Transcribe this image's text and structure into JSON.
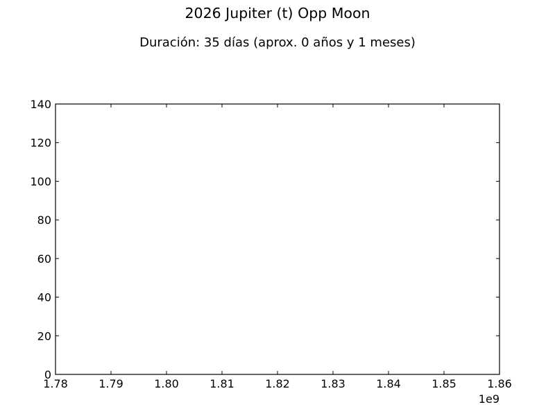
{
  "chart_data": {
    "type": "line",
    "title": "2026 Jupiter (t) Opp Moon",
    "subtitle": "Duración: 35 días (aprox. 0 años y 1 meses)",
    "xlabel": "",
    "ylabel": "",
    "x_offset_label": "1e9",
    "xlim": [
      1.78,
      1.86
    ],
    "ylim": [
      0,
      140
    ],
    "x_ticks": [
      1.78,
      1.79,
      1.8,
      1.81,
      1.82,
      1.83,
      1.84,
      1.85,
      1.86
    ],
    "x_tick_labels": [
      "1.78",
      "1.79",
      "1.80",
      "1.81",
      "1.82",
      "1.83",
      "1.84",
      "1.85",
      "1.86"
    ],
    "y_ticks": [
      0,
      20,
      40,
      60,
      80,
      100,
      120,
      140
    ],
    "y_tick_labels": [
      "0",
      "20",
      "40",
      "60",
      "80",
      "100",
      "120",
      "140"
    ],
    "grid": false,
    "series": []
  }
}
